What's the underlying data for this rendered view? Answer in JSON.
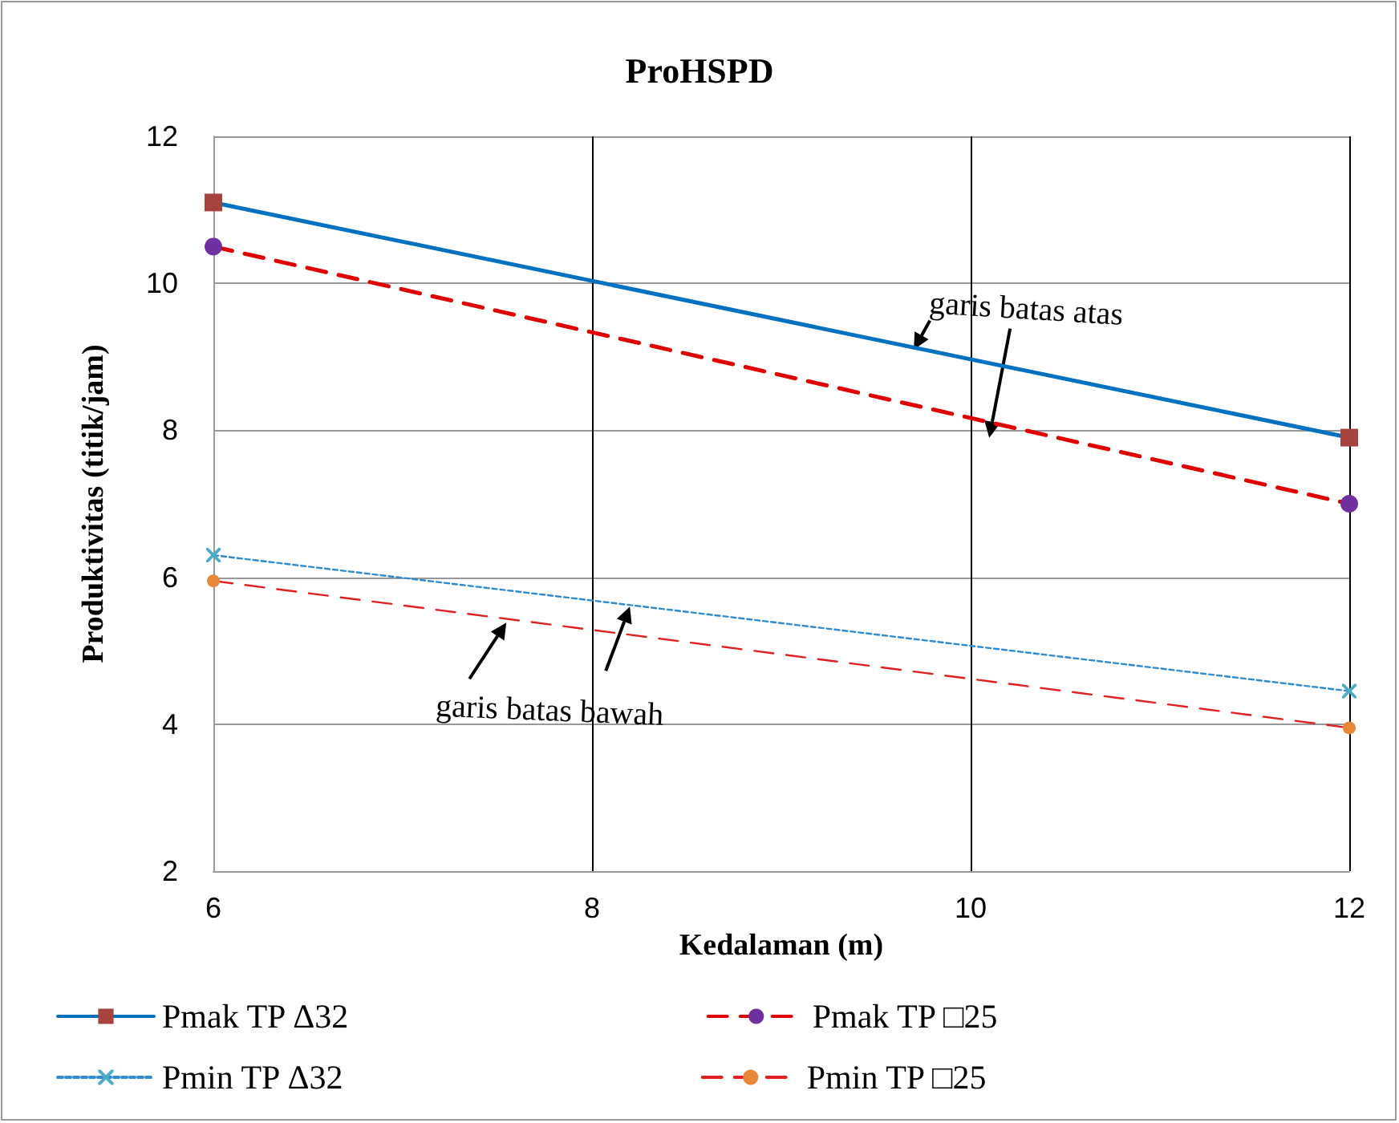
{
  "chart_data": {
    "type": "line",
    "title": "ProHSPD",
    "xlabel": "Kedalaman (m)",
    "ylabel": "Produktivitas (titik/jam)",
    "x": [
      6,
      12
    ],
    "series": [
      {
        "name": "Pmak TP Δ32",
        "color": "#0070c0",
        "colors": [
          "#a5433c",
          "#a5433c"
        ],
        "marker": "square",
        "line_style": "solid",
        "values": [
          11.1,
          7.9
        ]
      },
      {
        "name": "Pmak TP □25",
        "color": "#e00000",
        "colors": [
          "#7030a0",
          "#7030a0"
        ],
        "marker": "circle",
        "line_style": "dashed",
        "values": [
          10.5,
          7.0
        ]
      },
      {
        "name": "Pmin TP Δ32",
        "color": "#2e8bd0",
        "colors": [
          "#4bacc6",
          "#4bacc6"
        ],
        "marker": "cross",
        "line_style": "dotted",
        "values": [
          6.3,
          4.45
        ]
      },
      {
        "name": "Pmin TP □25",
        "color": "#e02020",
        "colors": [
          "#e8873a",
          "#e8873a"
        ],
        "marker": "circle",
        "line_style": "dashed",
        "values": [
          5.95,
          3.95
        ]
      }
    ],
    "xlim": [
      6,
      12
    ],
    "xticks": [
      6,
      8,
      10,
      12
    ],
    "ylim": [
      2,
      12
    ],
    "yticks": [
      2,
      4,
      6,
      8,
      10,
      12
    ],
    "grid": true,
    "legend": "bottom",
    "annotations": [
      {
        "text": "garis batas atas",
        "x": 9.7,
        "y": 9.1
      },
      {
        "text": "garis batas bawah",
        "x": 8.2,
        "y": 5.6
      }
    ]
  }
}
